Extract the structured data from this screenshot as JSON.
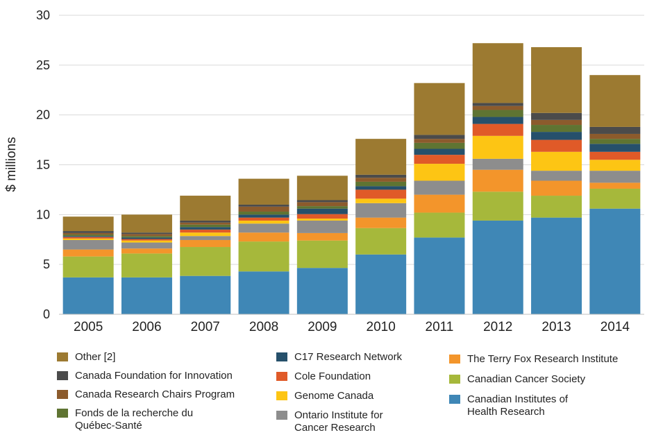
{
  "chart_data": {
    "type": "stacked-bar",
    "y_label": "$ millions",
    "categories": [
      "2005",
      "2006",
      "2007",
      "2008",
      "2009",
      "2010",
      "2011",
      "2012",
      "2013",
      "2014"
    ],
    "ylim": [
      0,
      30
    ],
    "yticks": [
      0,
      5,
      10,
      15,
      20,
      25,
      30
    ],
    "grid": true,
    "series": [
      {
        "name": "Canadian Institutes of Health Research",
        "color": "#3f87b6",
        "values": [
          3.7,
          3.7,
          3.85,
          4.3,
          4.65,
          6.0,
          7.7,
          9.4,
          9.7,
          10.6
        ]
      },
      {
        "name": "Canadian Cancer Society",
        "color": "#a6b83b",
        "values": [
          2.1,
          2.4,
          2.9,
          3.0,
          2.75,
          2.65,
          2.5,
          2.9,
          2.2,
          2.0
        ]
      },
      {
        "name": "The Terry Fox Research Institute",
        "color": "#f3952b",
        "values": [
          0.7,
          0.5,
          0.7,
          0.9,
          0.75,
          1.05,
          1.8,
          2.2,
          1.5,
          0.6
        ]
      },
      {
        "name": "Ontario Institute for Cancer Research",
        "color": "#8d8d8d",
        "values": [
          0.95,
          0.6,
          0.4,
          0.9,
          1.25,
          1.45,
          1.4,
          1.1,
          1.0,
          1.2
        ]
      },
      {
        "name": "Genome Canada",
        "color": "#fdc514",
        "values": [
          0.15,
          0.2,
          0.35,
          0.3,
          0.2,
          0.45,
          1.7,
          2.3,
          1.9,
          1.1
        ]
      },
      {
        "name": "Cole Foundation",
        "color": "#e05a28",
        "values": [
          0.15,
          0.15,
          0.3,
          0.3,
          0.45,
          0.9,
          0.9,
          1.2,
          1.2,
          0.8
        ]
      },
      {
        "name": "C17 Research Network",
        "color": "#26506b",
        "values": [
          0.1,
          0.15,
          0.25,
          0.3,
          0.55,
          0.35,
          0.6,
          0.7,
          0.8,
          0.8
        ]
      },
      {
        "name": "Fonds de la recherche du Québec-Santé",
        "color": "#5f7432",
        "values": [
          0.15,
          0.15,
          0.25,
          0.3,
          0.25,
          0.45,
          0.6,
          0.7,
          0.7,
          0.5
        ]
      },
      {
        "name": "Canada Research Chairs Program",
        "color": "#8c5b2c",
        "values": [
          0.15,
          0.2,
          0.2,
          0.5,
          0.4,
          0.4,
          0.4,
          0.4,
          0.5,
          0.5
        ]
      },
      {
        "name": "Canada Foundation for Innovation",
        "color": "#4b4b4b",
        "values": [
          0.2,
          0.15,
          0.2,
          0.2,
          0.2,
          0.3,
          0.4,
          0.3,
          0.7,
          0.7
        ]
      },
      {
        "name": "Other [2]",
        "color": "#9c7a31",
        "values": [
          1.45,
          1.8,
          2.5,
          2.6,
          2.45,
          3.6,
          5.2,
          6.0,
          6.6,
          5.2
        ]
      }
    ]
  }
}
